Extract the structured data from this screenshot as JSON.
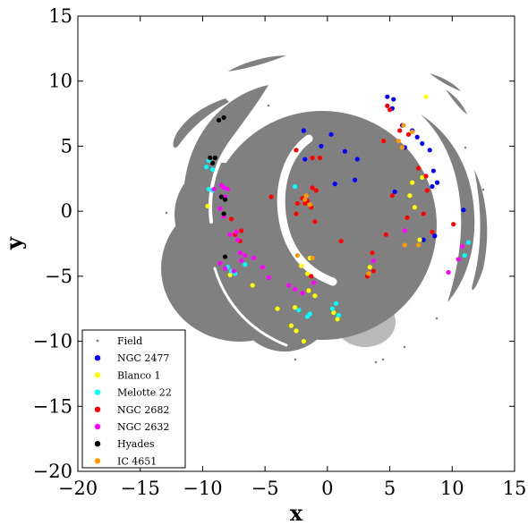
{
  "chart_data": {
    "type": "scatter",
    "title": "",
    "xlabel": "x",
    "ylabel": "y",
    "xlim": [
      -20,
      15
    ],
    "ylim": [
      -20,
      15
    ],
    "xticks": [
      -20,
      -15,
      -10,
      -5,
      0,
      5,
      10,
      15
    ],
    "yticks": [
      -20,
      -15,
      -10,
      -5,
      0,
      5,
      10,
      15
    ],
    "xtick_labels": [
      "−20",
      "−15",
      "−10",
      "−5",
      "0",
      "5",
      "10",
      "15"
    ],
    "ytick_labels": [
      "−20",
      "−15",
      "−10",
      "−5",
      "0",
      "5",
      "10",
      "15"
    ],
    "grid": false,
    "legend_position": "bottom-left",
    "field": {
      "name": "Field",
      "color": "#808080"
    },
    "series": [
      {
        "name": "NGC 2477",
        "color": "#0000ff",
        "points": [
          [
            -1.9,
            6.2
          ],
          [
            -0.5,
            5.0
          ],
          [
            0.3,
            5.9
          ],
          [
            -1.8,
            4.0
          ],
          [
            1.4,
            4.6
          ],
          [
            2.4,
            4.0
          ],
          [
            0.6,
            2.1
          ],
          [
            2.2,
            2.4
          ],
          [
            4.8,
            8.8
          ],
          [
            5.3,
            8.6
          ],
          [
            5.2,
            7.9
          ],
          [
            6.0,
            6.6
          ],
          [
            6.8,
            6.2
          ],
          [
            7.2,
            5.7
          ],
          [
            7.6,
            5.2
          ],
          [
            8.2,
            4.7
          ],
          [
            6.2,
            4.9
          ],
          [
            8.5,
            3.1
          ],
          [
            8.8,
            2.2
          ],
          [
            5.4,
            1.5
          ],
          [
            8.4,
            1.9
          ],
          [
            10.9,
            0.1
          ],
          [
            7.7,
            -2.2
          ],
          [
            8.6,
            -1.9
          ]
        ]
      },
      {
        "name": "Blanco 1",
        "color": "#ffff00",
        "points": [
          [
            7.9,
            8.8
          ],
          [
            6.8,
            2.2
          ],
          [
            7.6,
            2.6
          ],
          [
            6.6,
            1.2
          ],
          [
            7.0,
            0.3
          ],
          [
            -9.6,
            0.4
          ],
          [
            -7.8,
            -4.9
          ],
          [
            -6.0,
            -5.7
          ],
          [
            -4.0,
            -7.5
          ],
          [
            -2.9,
            -8.8
          ],
          [
            -2.5,
            -9.2
          ],
          [
            -1.9,
            -10.0
          ],
          [
            -2.1,
            -4.2
          ],
          [
            -1.4,
            -3.6
          ],
          [
            -1.6,
            -4.8
          ],
          [
            -1.5,
            -6.1
          ],
          [
            -1.0,
            -6.5
          ],
          [
            0.5,
            -7.8
          ],
          [
            0.8,
            -8.3
          ],
          [
            3.4,
            -4.3
          ],
          [
            -2.6,
            -7.4
          ],
          [
            7.4,
            -2.2
          ]
        ]
      },
      {
        "name": "Melotte 22",
        "color": "#00ffff",
        "points": [
          [
            -9.7,
            3.4
          ],
          [
            -9.5,
            3.9
          ],
          [
            -9.2,
            3.2
          ],
          [
            -9.5,
            1.7
          ],
          [
            -9.2,
            1.6
          ],
          [
            -2.6,
            1.9
          ],
          [
            -8.0,
            -4.3
          ],
          [
            -7.7,
            -4.6
          ],
          [
            -7.4,
            -4.8
          ],
          [
            -6.6,
            -4.1
          ],
          [
            -1.4,
            -7.9
          ],
          [
            -1.6,
            -8.1
          ],
          [
            0.4,
            -7.5
          ],
          [
            0.7,
            -7.1
          ],
          [
            0.9,
            -8.0
          ],
          [
            -2.3,
            -7.6
          ],
          [
            11.0,
            -3.4
          ],
          [
            11.3,
            -2.4
          ]
        ]
      },
      {
        "name": "NGC 2682",
        "color": "#ff0000",
        "points": [
          [
            -2.5,
            4.7
          ],
          [
            -1.2,
            4.1
          ],
          [
            -0.6,
            4.1
          ],
          [
            -1.2,
            1.8
          ],
          [
            -2.0,
            1.0
          ],
          [
            -2.4,
            0.6
          ],
          [
            -1.6,
            0.8
          ],
          [
            -1.3,
            0.3
          ],
          [
            -0.9,
            1.6
          ],
          [
            -2.5,
            -0.2
          ],
          [
            -1.8,
            0.6
          ],
          [
            -4.5,
            1.1
          ],
          [
            -1.0,
            -0.8
          ],
          [
            4.5,
            5.4
          ],
          [
            4.8,
            8.1
          ],
          [
            5.0,
            7.8
          ],
          [
            5.8,
            6.2
          ],
          [
            6.5,
            5.9
          ],
          [
            5.2,
            1.2
          ],
          [
            6.4,
            -0.5
          ],
          [
            7.3,
            3.3
          ],
          [
            7.9,
            2.7
          ],
          [
            8.0,
            1.6
          ],
          [
            7.7,
            -0.2
          ],
          [
            8.4,
            -1.6
          ],
          [
            10.1,
            -1.0
          ],
          [
            4.7,
            -1.8
          ],
          [
            3.6,
            -3.2
          ],
          [
            3.7,
            -4.6
          ],
          [
            3.2,
            -5.0
          ],
          [
            -7.7,
            -0.6
          ],
          [
            -7.4,
            -1.8
          ],
          [
            -7.0,
            -2.3
          ],
          [
            -6.9,
            -1.5
          ],
          [
            1.1,
            -2.3
          ],
          [
            -1.3,
            -5.0
          ]
        ]
      },
      {
        "name": "NGC 2632",
        "color": "#ff00ff",
        "points": [
          [
            -9.1,
            1.7
          ],
          [
            -8.5,
            2.0
          ],
          [
            -8.3,
            1.8
          ],
          [
            -8.0,
            1.7
          ],
          [
            -8.2,
            1.1
          ],
          [
            -8.6,
            0.2
          ],
          [
            -8.3,
            -0.4
          ],
          [
            -7.8,
            -1.8
          ],
          [
            -7.3,
            -1.6
          ],
          [
            -7.2,
            -2.2
          ],
          [
            -7.0,
            -3.2
          ],
          [
            -6.9,
            -3.8
          ],
          [
            -6.6,
            -3.4
          ],
          [
            -8.6,
            -4.0
          ],
          [
            -8.2,
            -4.4
          ],
          [
            -7.5,
            -4.6
          ],
          [
            -5.2,
            -4.3
          ],
          [
            -5.9,
            -3.6
          ],
          [
            -4.7,
            -5.1
          ],
          [
            -3.1,
            -5.7
          ],
          [
            -2.6,
            -6.0
          ],
          [
            -2.0,
            -6.3
          ],
          [
            -1.1,
            -5.5
          ],
          [
            10.8,
            -2.7
          ],
          [
            10.5,
            -3.7
          ],
          [
            9.7,
            -4.7
          ],
          [
            6.2,
            -1.5
          ],
          [
            3.7,
            -3.8
          ]
        ]
      },
      {
        "name": "Hyades",
        "color": "#000000",
        "points": [
          [
            -8.7,
            7.0
          ],
          [
            -8.3,
            7.2
          ],
          [
            -9.4,
            4.1
          ],
          [
            -9.0,
            4.1
          ],
          [
            -9.2,
            3.7
          ],
          [
            -8.5,
            1.1
          ],
          [
            -8.2,
            0.9
          ],
          [
            -8.3,
            -0.2
          ],
          [
            -8.2,
            -3.5
          ]
        ]
      },
      {
        "name": "IC 4651",
        "color": "#ff9900",
        "points": [
          [
            6.1,
            6.6
          ],
          [
            6.8,
            6.1
          ],
          [
            6.0,
            4.9
          ],
          [
            5.7,
            5.4
          ],
          [
            -1.8,
            0.9
          ],
          [
            -1.4,
            0.5
          ],
          [
            -1.7,
            1.2
          ],
          [
            -2.4,
            -3.4
          ],
          [
            -1.2,
            -3.6
          ],
          [
            3.3,
            -4.8
          ],
          [
            6.2,
            -2.6
          ],
          [
            7.3,
            -2.6
          ]
        ]
      }
    ]
  }
}
